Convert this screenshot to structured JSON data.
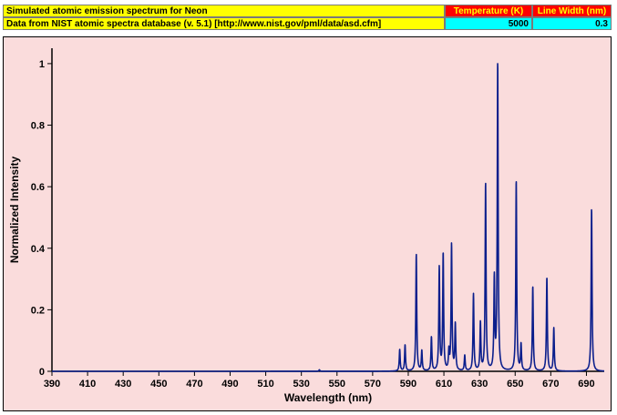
{
  "header": {
    "title": "Simulated atomic emission spectrum for Neon",
    "source": "Data from NIST atomic spectra database (v. 5.1) [http://www.nist.gov/pml/data/asd.cfm]",
    "temperature_label": "Temperature (K)",
    "temperature_value": "5000",
    "linewidth_label": "Line Width (nm)",
    "linewidth_value": "0.3"
  },
  "colors": {
    "plot_background": "#fadcdc",
    "line": "#0a1e8c",
    "header_yellow": "#ffff00",
    "header_red": "#ff0000",
    "header_cyan": "#00ffff"
  },
  "chart_data": {
    "type": "line",
    "title": "",
    "xlabel": "Wavelength (nm)",
    "ylabel": "Normalized Intensity",
    "xlim": [
      390,
      700
    ],
    "ylim": [
      0,
      1.05
    ],
    "x_ticks": [
      390,
      410,
      430,
      450,
      470,
      490,
      510,
      530,
      550,
      570,
      590,
      610,
      630,
      650,
      670,
      690
    ],
    "y_ticks": [
      0,
      0.2,
      0.4,
      0.6,
      0.8,
      1
    ],
    "y_tick_labels": [
      "0",
      "0.2",
      "0.4",
      "0.6",
      "0.8",
      "1"
    ],
    "line_width_nm": 0.3,
    "grid": false,
    "series": [
      {
        "peaks": [
          {
            "x": 540.1,
            "y": 0.005
          },
          {
            "x": 585.2,
            "y": 0.07
          },
          {
            "x": 588.2,
            "y": 0.085
          },
          {
            "x": 594.5,
            "y": 0.38
          },
          {
            "x": 597.6,
            "y": 0.065
          },
          {
            "x": 603.0,
            "y": 0.11
          },
          {
            "x": 607.4,
            "y": 0.335
          },
          {
            "x": 609.6,
            "y": 0.38
          },
          {
            "x": 612.8,
            "y": 0.06
          },
          {
            "x": 614.3,
            "y": 0.41
          },
          {
            "x": 616.4,
            "y": 0.15
          },
          {
            "x": 621.7,
            "y": 0.05
          },
          {
            "x": 626.6,
            "y": 0.25
          },
          {
            "x": 630.5,
            "y": 0.155
          },
          {
            "x": 633.4,
            "y": 0.61
          },
          {
            "x": 638.3,
            "y": 0.295
          },
          {
            "x": 640.2,
            "y": 1.0
          },
          {
            "x": 650.6,
            "y": 0.62
          },
          {
            "x": 653.3,
            "y": 0.085
          },
          {
            "x": 659.9,
            "y": 0.275
          },
          {
            "x": 667.8,
            "y": 0.305
          },
          {
            "x": 671.7,
            "y": 0.14
          },
          {
            "x": 692.9,
            "y": 0.53
          }
        ]
      }
    ]
  }
}
